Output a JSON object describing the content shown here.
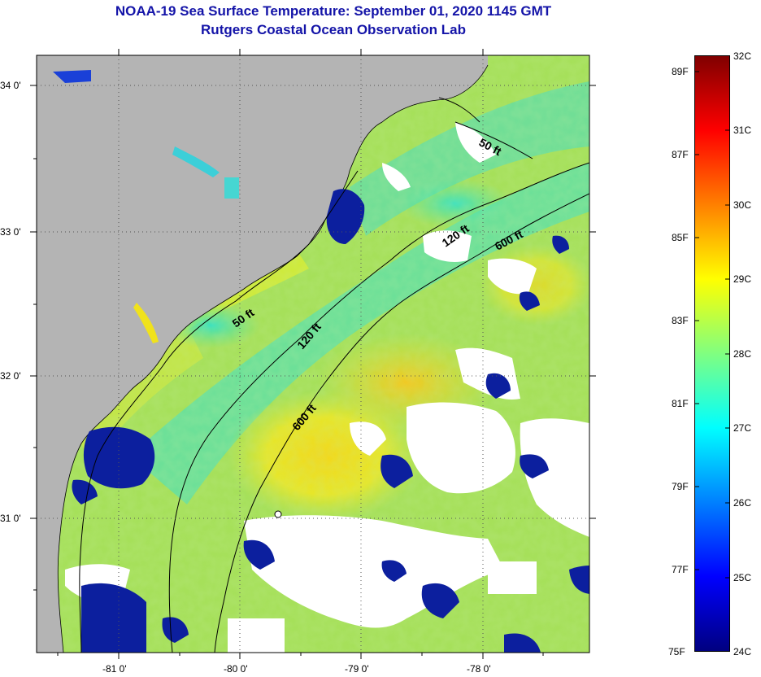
{
  "title": {
    "line1": "NOAA-19 Sea Surface Temperature:  September 01, 2020 1145 GMT",
    "line2": "Rutgers Coastal Ocean Observation Lab"
  },
  "map": {
    "lon_ticks": [
      "-81 0'",
      "-80 0'",
      "-79 0'",
      "-78 0'"
    ],
    "lat_ticks": [
      "34 0'",
      "33 0'",
      "32 0'",
      "31 0'"
    ],
    "contour_labels": [
      "50 ft",
      "50 ft",
      "120 ft",
      "120 ft",
      "600 ft",
      "600 ft"
    ],
    "colors": {
      "land": "#b4b4b4",
      "cloud": "#ffffff",
      "water_base": "#a6e05a"
    }
  },
  "colorbar": {
    "fahrenheit": [
      "89F",
      "87F",
      "85F",
      "83F",
      "81F",
      "79F",
      "77F",
      "75F"
    ],
    "celsius": [
      "32C",
      "31C",
      "30C",
      "29C",
      "28C",
      "27C",
      "26C",
      "25C",
      "24C"
    ],
    "colors": {
      "top": "#800000",
      "red": "#ff0000",
      "orange": "#ff8000",
      "yellow": "#ffff00",
      "green": "#80ff80",
      "cyan": "#00ffff",
      "blue": "#0080ff",
      "deep_blue": "#0000ff",
      "bottom": "#000080"
    }
  }
}
